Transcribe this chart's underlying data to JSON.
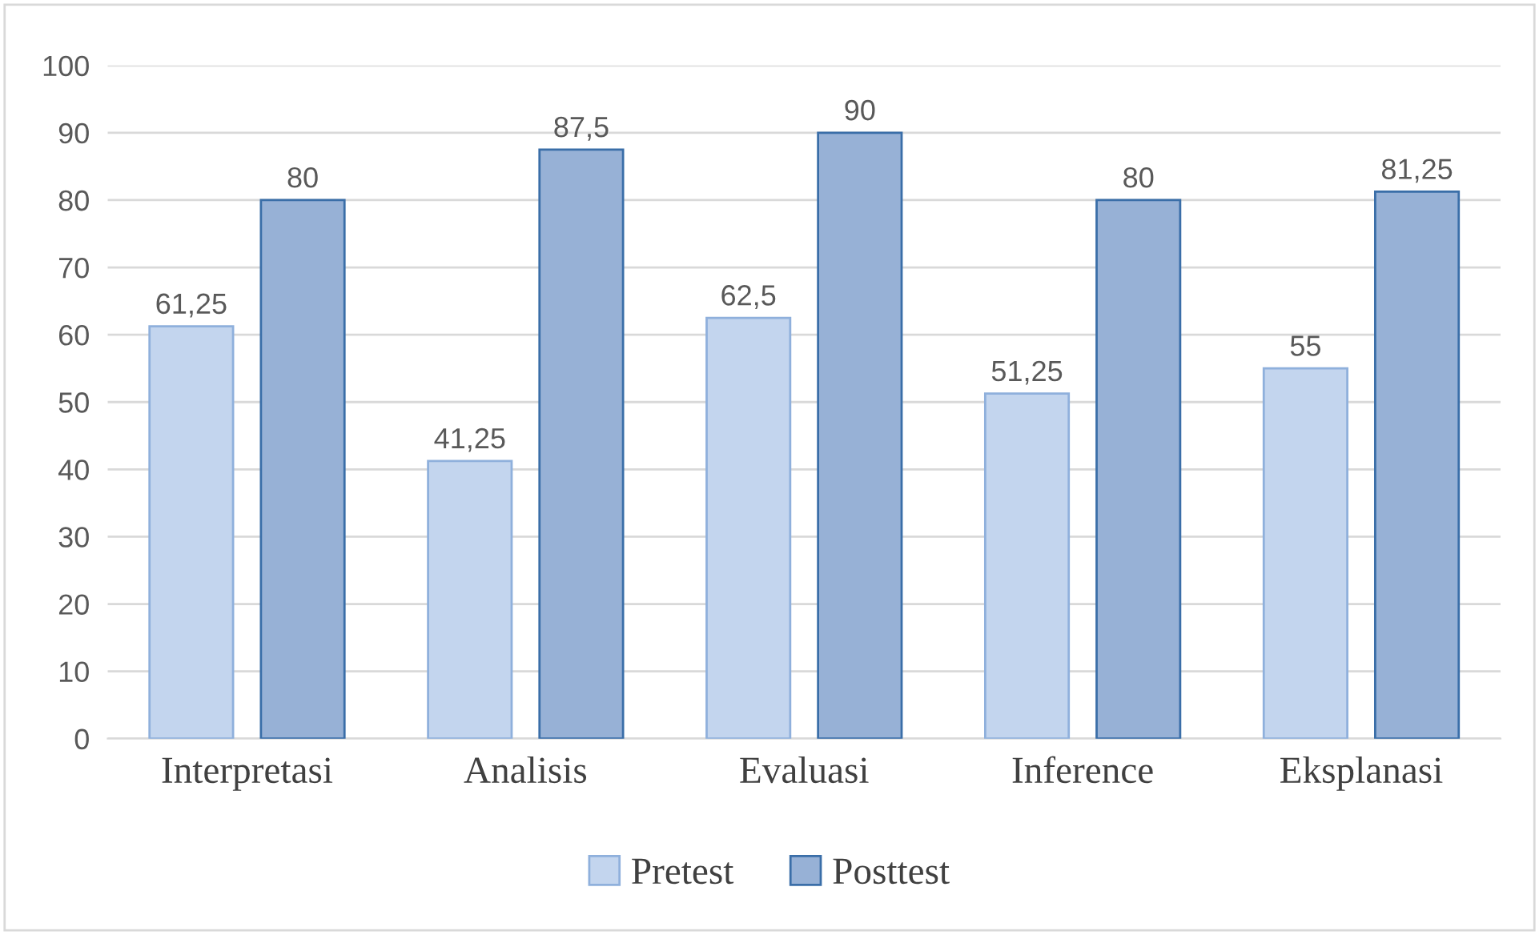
{
  "chart_data": {
    "type": "bar",
    "categories": [
      "Interpretasi",
      "Analisis",
      "Evaluasi",
      "Inference",
      "Eksplanasi"
    ],
    "series": [
      {
        "name": "Pretest",
        "color": "#c3d5ee",
        "values": [
          61.25,
          41.25,
          62.5,
          51.25,
          55
        ],
        "value_labels": [
          "61,25",
          "41,25",
          "62,5",
          "51,25",
          "55"
        ]
      },
      {
        "name": "Posttest",
        "color": "#97b1d6",
        "values": [
          80,
          87.5,
          90,
          80,
          81.25
        ],
        "value_labels": [
          "80",
          "87,5",
          "90",
          "80",
          "81,25"
        ]
      }
    ],
    "ylim": [
      0,
      100
    ],
    "yticks": [
      0,
      10,
      20,
      30,
      40,
      50,
      60,
      70,
      80,
      90,
      100
    ],
    "grid": "y",
    "legend": "bottom"
  }
}
